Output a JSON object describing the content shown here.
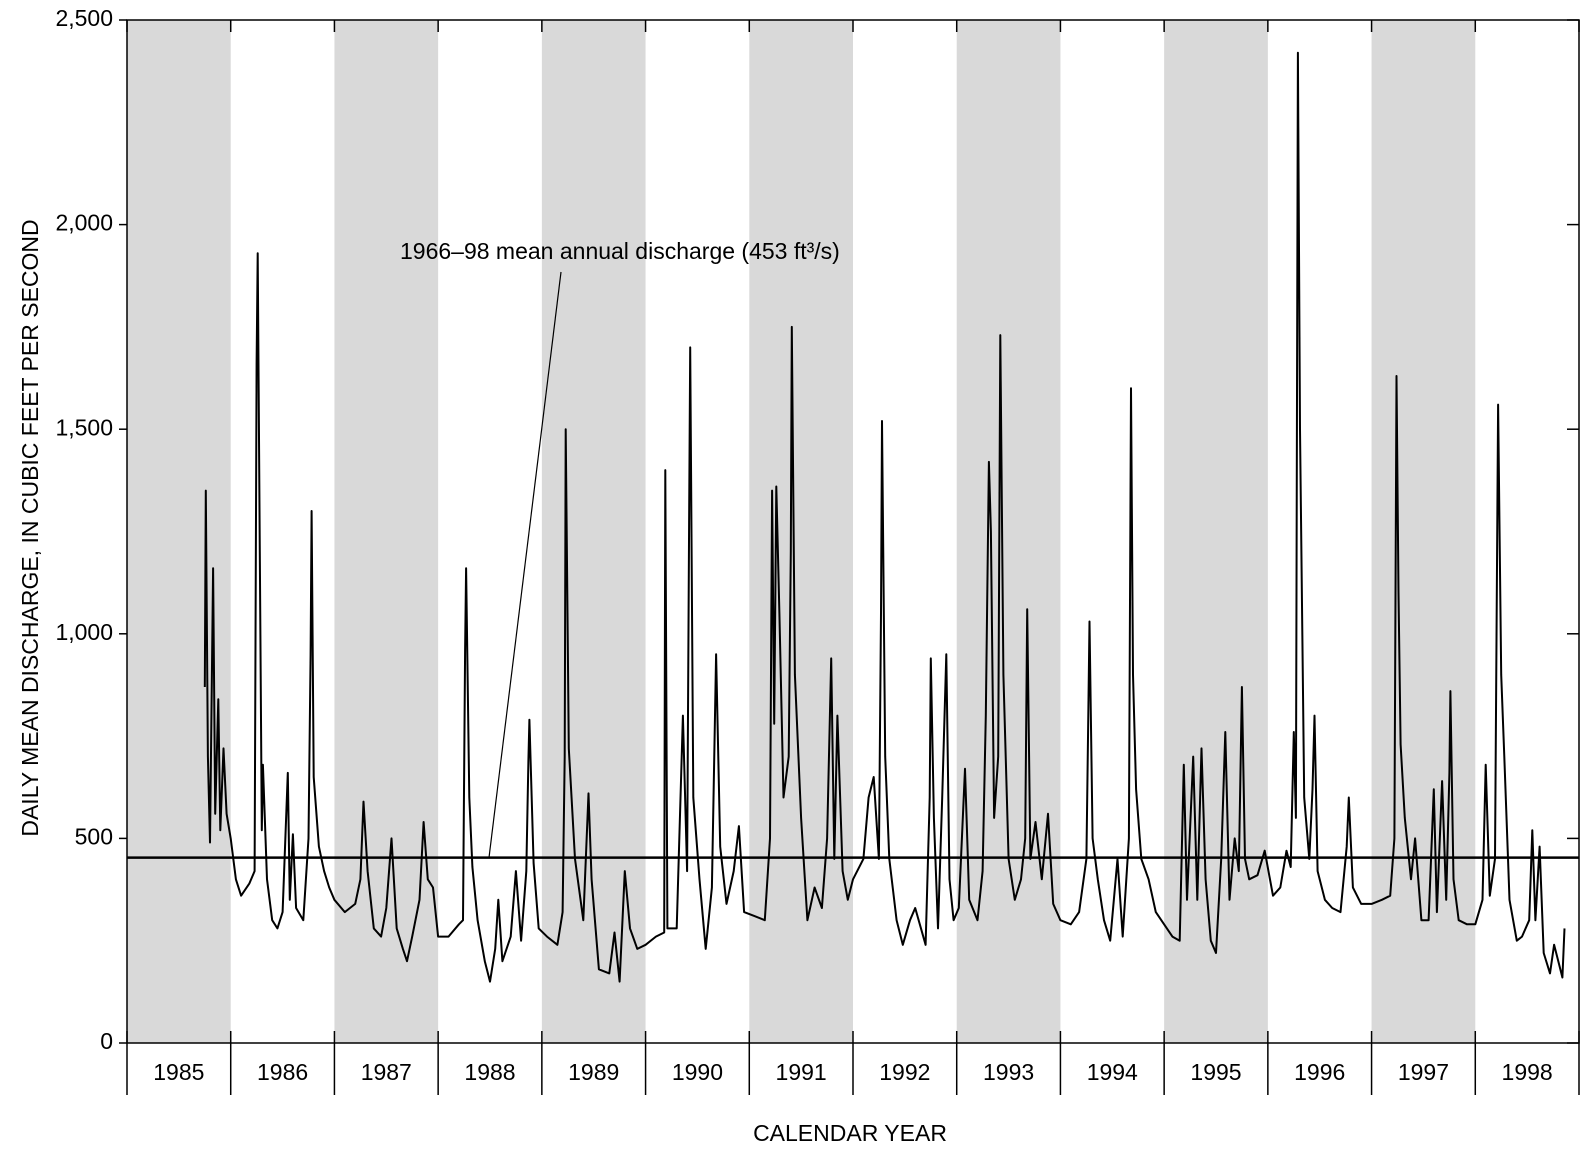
{
  "chart_data": {
    "type": "line",
    "ylabel": "DAILY MEAN DISCHARGE, IN CUBIC FEET PER SECOND",
    "xlabel": "CALENDAR YEAR",
    "categories": [
      "1985",
      "1986",
      "1987",
      "1988",
      "1989",
      "1990",
      "1991",
      "1992",
      "1993",
      "1994",
      "1995",
      "1996",
      "1997",
      "1998"
    ],
    "xlim": [
      1985,
      1999
    ],
    "xticks": [
      1985,
      1986,
      1987,
      1988,
      1989,
      1990,
      1991,
      1992,
      1993,
      1994,
      1995,
      1996,
      1997,
      1998,
      1999
    ],
    "ylim": [
      0,
      2500
    ],
    "yticks": [
      0,
      500,
      {
        "value": 1000,
        "label": "1,000"
      },
      {
        "value": 1500,
        "label": "1,500"
      },
      {
        "value": 2000,
        "label": "2,000"
      },
      {
        "value": 2500,
        "label": "2,500"
      }
    ],
    "band_color": "#d9d9d9",
    "mean_line": 453,
    "annotation": "1966–98 mean annual discharge (453 ft³/s)",
    "x": [
      1985.75,
      1985.76,
      1985.78,
      1985.8,
      1985.83,
      1985.85,
      1985.88,
      1985.9,
      1985.93,
      1985.96,
      1986,
      1986.05,
      1986.1,
      1986.18,
      1986.23,
      1986.25,
      1986.26,
      1986.28,
      1986.3,
      1986.31,
      1986.35,
      1986.4,
      1986.45,
      1986.5,
      1986.55,
      1986.57,
      1986.6,
      1986.63,
      1986.7,
      1986.75,
      1986.77,
      1986.78,
      1986.8,
      1986.85,
      1986.9,
      1986.95,
      1987,
      1987.1,
      1987.2,
      1987.25,
      1987.28,
      1987.32,
      1987.38,
      1987.45,
      1987.5,
      1987.55,
      1987.6,
      1987.66,
      1987.7,
      1987.75,
      1987.82,
      1987.86,
      1987.9,
      1987.95,
      1988,
      1988.1,
      1988.2,
      1988.24,
      1988.26,
      1988.27,
      1988.3,
      1988.33,
      1988.38,
      1988.45,
      1988.5,
      1988.55,
      1988.58,
      1988.62,
      1988.7,
      1988.75,
      1988.8,
      1988.85,
      1988.87,
      1988.88,
      1988.92,
      1988.97,
      1989.05,
      1989.15,
      1989.2,
      1989.22,
      1989.23,
      1989.26,
      1989.32,
      1989.4,
      1989.45,
      1989.48,
      1989.55,
      1989.65,
      1989.7,
      1989.75,
      1989.8,
      1989.85,
      1989.92,
      1990,
      1990.1,
      1990.18,
      1990.19,
      1990.21,
      1990.3,
      1990.36,
      1990.4,
      1990.42,
      1990.43,
      1990.46,
      1990.52,
      1990.58,
      1990.64,
      1990.68,
      1990.72,
      1990.78,
      1990.85,
      1990.9,
      1990.95,
      1991.05,
      1991.15,
      1991.2,
      1991.22,
      1991.24,
      1991.26,
      1991.29,
      1991.33,
      1991.38,
      1991.4,
      1991.41,
      1991.44,
      1991.5,
      1991.56,
      1991.63,
      1991.7,
      1991.75,
      1991.79,
      1991.82,
      1991.85,
      1991.9,
      1991.95,
      1992,
      1992.1,
      1992.15,
      1992.2,
      1992.25,
      1992.27,
      1992.28,
      1992.31,
      1992.35,
      1992.42,
      1992.48,
      1992.55,
      1992.6,
      1992.7,
      1992.74,
      1992.75,
      1992.78,
      1992.82,
      1992.86,
      1992.9,
      1992.93,
      1992.97,
      1993.02,
      1993.08,
      1993.12,
      1993.2,
      1993.25,
      1993.28,
      1993.31,
      1993.33,
      1993.36,
      1993.4,
      1993.42,
      1993.45,
      1993.5,
      1993.56,
      1993.62,
      1993.66,
      1993.68,
      1993.71,
      1993.76,
      1993.82,
      1993.88,
      1993.93,
      1994,
      1994.1,
      1994.18,
      1994.25,
      1994.27,
      1994.28,
      1994.31,
      1994.36,
      1994.42,
      1994.48,
      1994.55,
      1994.6,
      1994.66,
      1994.68,
      1994.7,
      1994.73,
      1994.78,
      1994.85,
      1994.92,
      1995,
      1995.08,
      1995.15,
      1995.19,
      1995.22,
      1995.28,
      1995.32,
      1995.36,
      1995.4,
      1995.45,
      1995.5,
      1995.55,
      1995.59,
      1995.63,
      1995.68,
      1995.72,
      1995.75,
      1995.78,
      1995.82,
      1995.9,
      1995.97,
      1996.05,
      1996.12,
      1996.18,
      1996.22,
      1996.25,
      1996.27,
      1996.29,
      1996.31,
      1996.35,
      1996.4,
      1996.43,
      1996.45,
      1996.48,
      1996.55,
      1996.62,
      1996.7,
      1996.76,
      1996.78,
      1996.82,
      1996.9,
      1997,
      1997.1,
      1997.18,
      1997.22,
      1997.24,
      1997.26,
      1997.28,
      1997.32,
      1997.38,
      1997.42,
      1997.48,
      1997.55,
      1997.6,
      1997.63,
      1997.68,
      1997.72,
      1997.75,
      1997.76,
      1997.79,
      1997.84,
      1997.92,
      1998,
      1998.07,
      1998.1,
      1998.14,
      1998.19,
      1998.22,
      1998.25,
      1998.28,
      1998.33,
      1998.4,
      1998.45,
      1998.52,
      1998.55,
      1998.58,
      1998.62,
      1998.66,
      1998.72,
      1998.76,
      1998.8,
      1998.84,
      1998.86
    ],
    "series": [
      {
        "color": "#000000",
        "values": [
          870,
          1350,
          700,
          490,
          1160,
          560,
          840,
          520,
          720,
          560,
          500,
          400,
          360,
          390,
          420,
          1660,
          1930,
          1200,
          520,
          680,
          400,
          300,
          280,
          320,
          660,
          350,
          510,
          330,
          300,
          500,
          950,
          1300,
          650,
          480,
          420,
          380,
          350,
          320,
          340,
          400,
          590,
          420,
          280,
          260,
          330,
          500,
          280,
          230,
          200,
          260,
          350,
          540,
          400,
          380,
          260,
          260,
          290,
          300,
          960,
          1160,
          600,
          430,
          300,
          200,
          150,
          230,
          350,
          200,
          260,
          420,
          250,
          420,
          690,
          790,
          440,
          280,
          260,
          240,
          320,
          700,
          1500,
          720,
          450,
          300,
          610,
          400,
          180,
          170,
          270,
          150,
          420,
          280,
          230,
          240,
          260,
          270,
          1400,
          280,
          280,
          800,
          420,
          1270,
          1700,
          600,
          400,
          230,
          380,
          950,
          480,
          340,
          420,
          530,
          320,
          310,
          300,
          500,
          1350,
          780,
          1360,
          1050,
          600,
          700,
          1200,
          1750,
          900,
          550,
          300,
          380,
          330,
          500,
          940,
          450,
          800,
          420,
          350,
          400,
          450,
          600,
          650,
          450,
          1050,
          1520,
          700,
          450,
          300,
          240,
          300,
          330,
          240,
          600,
          940,
          550,
          280,
          600,
          950,
          400,
          300,
          330,
          670,
          350,
          300,
          420,
          800,
          1420,
          1250,
          550,
          700,
          1730,
          900,
          450,
          350,
          400,
          500,
          1060,
          450,
          540,
          400,
          560,
          340,
          300,
          290,
          320,
          450,
          820,
          1030,
          500,
          400,
          300,
          250,
          450,
          260,
          500,
          1600,
          900,
          620,
          450,
          400,
          320,
          290,
          260,
          250,
          680,
          350,
          700,
          350,
          720,
          400,
          250,
          220,
          450,
          760,
          350,
          500,
          420,
          870,
          450,
          400,
          410,
          470,
          360,
          380,
          470,
          430,
          760,
          550,
          2420,
          1500,
          600,
          450,
          620,
          800,
          420,
          350,
          330,
          320,
          480,
          600,
          380,
          340,
          340,
          350,
          360,
          500,
          1630,
          1100,
          730,
          550,
          400,
          500,
          300,
          300,
          620,
          320,
          640,
          350,
          660,
          860,
          400,
          300,
          290,
          290,
          350,
          680,
          360,
          450,
          1560,
          900,
          700,
          350,
          250,
          260,
          300,
          520,
          300,
          480,
          220,
          170,
          240,
          200,
          160,
          280
        ]
      }
    ]
  }
}
